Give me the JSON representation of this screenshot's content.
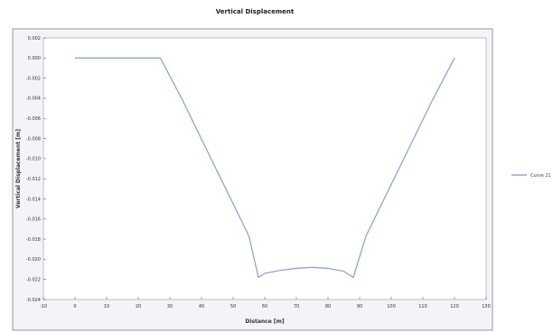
{
  "chart_data": {
    "type": "line",
    "title": "Vertical Displacement",
    "xlabel": "Distance [m]",
    "ylabel": "Vertical Displacement [m]",
    "xlim": [
      -10,
      130
    ],
    "ylim": [
      -0.024,
      0.002
    ],
    "x_ticks": [
      -10,
      0,
      10,
      20,
      30,
      40,
      50,
      60,
      70,
      80,
      90,
      100,
      110,
      120,
      130
    ],
    "y_ticks": [
      0.002,
      0,
      -0.002,
      -0.004,
      -0.006,
      -0.008,
      -0.01,
      -0.012,
      -0.014,
      -0.016,
      -0.018,
      -0.02,
      -0.022,
      -0.024
    ],
    "y_tick_labels": [
      "0.002",
      "0.000",
      "-0.002",
      "-0.004",
      "-0.006",
      "-0.008",
      "-0.010",
      "-0.012",
      "-0.014",
      "-0.016",
      "-0.018",
      "-0.020",
      "-0.022",
      "-0.024"
    ],
    "grid": false,
    "legend_position": "right",
    "series": [
      {
        "name": "Curve 21",
        "color": "#8da6d3",
        "x": [
          0,
          27,
          34,
          41,
          48,
          55,
          58,
          60,
          65,
          70,
          75,
          80,
          85,
          88,
          92,
          99,
          106,
          113,
          120
        ],
        "y": [
          0,
          0,
          -0.0042,
          -0.0087,
          -0.0132,
          -0.0177,
          -0.0218,
          -0.0214,
          -0.0211,
          -0.0209,
          -0.0208,
          -0.0209,
          -0.0212,
          -0.0218,
          -0.0177,
          -0.0132,
          -0.0087,
          -0.0042,
          0
        ]
      }
    ]
  }
}
